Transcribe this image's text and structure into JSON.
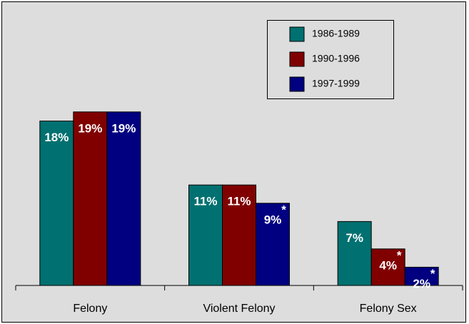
{
  "chart_data": {
    "type": "bar",
    "categories": [
      "Felony",
      "Violent Felony",
      "Felony Sex"
    ],
    "series": [
      {
        "name": "1986-1989",
        "color": "#007070",
        "values": [
          18,
          11,
          7
        ],
        "value_labels": [
          "18%",
          "11%",
          "7%"
        ],
        "annotations": [
          null,
          null,
          null
        ]
      },
      {
        "name": "1990-1996",
        "color": "#800000",
        "values": [
          19,
          11,
          4
        ],
        "value_labels": [
          "19%",
          "11%",
          "4%"
        ],
        "annotations": [
          null,
          null,
          "*"
        ]
      },
      {
        "name": "1997-1999",
        "color": "#000080",
        "values": [
          19,
          9,
          2
        ],
        "value_labels": [
          "19%",
          "9%",
          "2%"
        ],
        "annotations": [
          null,
          "*",
          "*"
        ]
      }
    ],
    "legend": "top-right"
  }
}
